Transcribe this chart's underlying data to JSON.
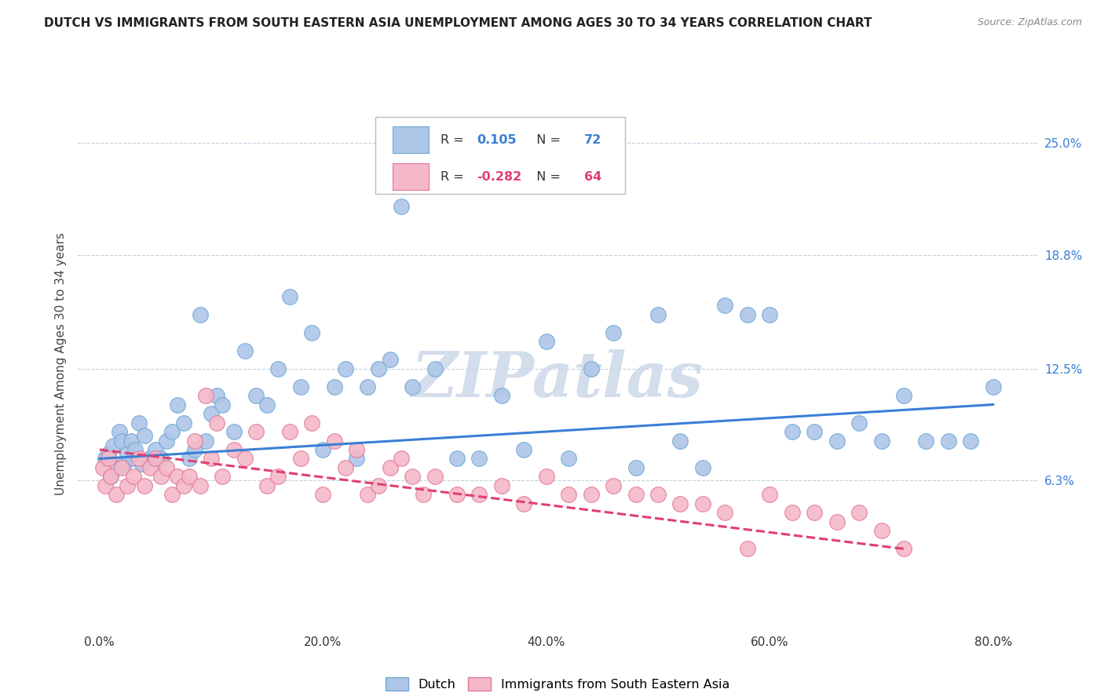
{
  "title": "DUTCH VS IMMIGRANTS FROM SOUTH EASTERN ASIA UNEMPLOYMENT AMONG AGES 30 TO 34 YEARS CORRELATION CHART",
  "source": "Source: ZipAtlas.com",
  "ylabel": "Unemployment Among Ages 30 to 34 years",
  "xlabel_vals": [
    0.0,
    20.0,
    40.0,
    60.0,
    80.0
  ],
  "ylabel_vals_right": [
    6.3,
    12.5,
    18.8,
    25.0
  ],
  "ylabel_ticks_right": [
    "6.3%",
    "12.5%",
    "18.8%",
    "25.0%"
  ],
  "xlim": [
    -2.0,
    84.0
  ],
  "ylim": [
    -2.0,
    27.5
  ],
  "legend_r_dutch": "0.105",
  "legend_n_dutch": "72",
  "legend_r_sea": "-0.282",
  "legend_n_sea": "64",
  "dutch_color": "#aec6e8",
  "dutch_edge_color": "#6fa8d4",
  "sea_color": "#f5b8c8",
  "sea_edge_color": "#e07898",
  "dutch_line_color": "#3a7fd5",
  "sea_line_color": "#e04070",
  "watermark_color": "#ccd8e8",
  "background_color": "#ffffff",
  "grid_color": "#c0d0e0",
  "dutch_scatter_x": [
    0.5,
    0.8,
    1.0,
    1.2,
    1.5,
    1.8,
    2.0,
    2.2,
    2.5,
    2.8,
    3.0,
    3.2,
    3.5,
    3.8,
    4.0,
    4.5,
    5.0,
    5.5,
    6.0,
    6.5,
    7.0,
    7.5,
    8.0,
    8.5,
    9.0,
    9.5,
    10.0,
    10.5,
    11.0,
    12.0,
    13.0,
    14.0,
    15.0,
    16.0,
    17.0,
    18.0,
    19.0,
    20.0,
    21.0,
    22.0,
    23.0,
    24.0,
    25.0,
    26.0,
    27.0,
    28.0,
    30.0,
    32.0,
    34.0,
    36.0,
    38.0,
    40.0,
    42.0,
    44.0,
    46.0,
    48.0,
    50.0,
    52.0,
    54.0,
    56.0,
    58.0,
    60.0,
    62.0,
    64.0,
    66.0,
    68.0,
    70.0,
    72.0,
    74.0,
    76.0,
    78.0,
    80.0
  ],
  "dutch_scatter_y": [
    7.5,
    7.8,
    6.5,
    8.2,
    7.0,
    9.0,
    8.5,
    7.2,
    7.8,
    8.5,
    7.5,
    8.0,
    9.5,
    7.2,
    8.8,
    7.5,
    8.0,
    7.5,
    8.5,
    9.0,
    10.5,
    9.5,
    7.5,
    8.0,
    15.5,
    8.5,
    10.0,
    11.0,
    10.5,
    9.0,
    13.5,
    11.0,
    10.5,
    12.5,
    16.5,
    11.5,
    14.5,
    8.0,
    11.5,
    12.5,
    7.5,
    11.5,
    12.5,
    13.0,
    21.5,
    11.5,
    12.5,
    7.5,
    7.5,
    11.0,
    8.0,
    14.0,
    7.5,
    12.5,
    14.5,
    7.0,
    15.5,
    8.5,
    7.0,
    16.0,
    15.5,
    15.5,
    9.0,
    9.0,
    8.5,
    9.5,
    8.5,
    11.0,
    8.5,
    8.5,
    8.5,
    11.5
  ],
  "sea_scatter_x": [
    0.3,
    0.5,
    0.8,
    1.0,
    1.5,
    2.0,
    2.5,
    3.0,
    3.5,
    4.0,
    4.5,
    5.0,
    5.5,
    6.0,
    6.5,
    7.0,
    7.5,
    8.0,
    8.5,
    9.0,
    9.5,
    10.0,
    10.5,
    11.0,
    12.0,
    13.0,
    14.0,
    15.0,
    16.0,
    17.0,
    18.0,
    19.0,
    20.0,
    21.0,
    22.0,
    23.0,
    24.0,
    25.0,
    26.0,
    27.0,
    28.0,
    29.0,
    30.0,
    32.0,
    34.0,
    36.0,
    38.0,
    40.0,
    42.0,
    44.0,
    46.0,
    48.0,
    50.0,
    52.0,
    54.0,
    56.0,
    58.0,
    60.0,
    62.0,
    64.0,
    66.0,
    68.0,
    70.0,
    72.0
  ],
  "sea_scatter_y": [
    7.0,
    6.0,
    7.5,
    6.5,
    5.5,
    7.0,
    6.0,
    6.5,
    7.5,
    6.0,
    7.0,
    7.5,
    6.5,
    7.0,
    5.5,
    6.5,
    6.0,
    6.5,
    8.5,
    6.0,
    11.0,
    7.5,
    9.5,
    6.5,
    8.0,
    7.5,
    9.0,
    6.0,
    6.5,
    9.0,
    7.5,
    9.5,
    5.5,
    8.5,
    7.0,
    8.0,
    5.5,
    6.0,
    7.0,
    7.5,
    6.5,
    5.5,
    6.5,
    5.5,
    5.5,
    6.0,
    5.0,
    6.5,
    5.5,
    5.5,
    6.0,
    5.5,
    5.5,
    5.0,
    5.0,
    4.5,
    2.5,
    5.5,
    4.5,
    4.5,
    4.0,
    4.5,
    3.5,
    2.5
  ],
  "dutch_trend_x": [
    0.0,
    80.0
  ],
  "dutch_trend_y": [
    7.5,
    10.5
  ],
  "sea_trend_x": [
    0.0,
    72.0
  ],
  "sea_trend_y": [
    8.0,
    2.5
  ]
}
